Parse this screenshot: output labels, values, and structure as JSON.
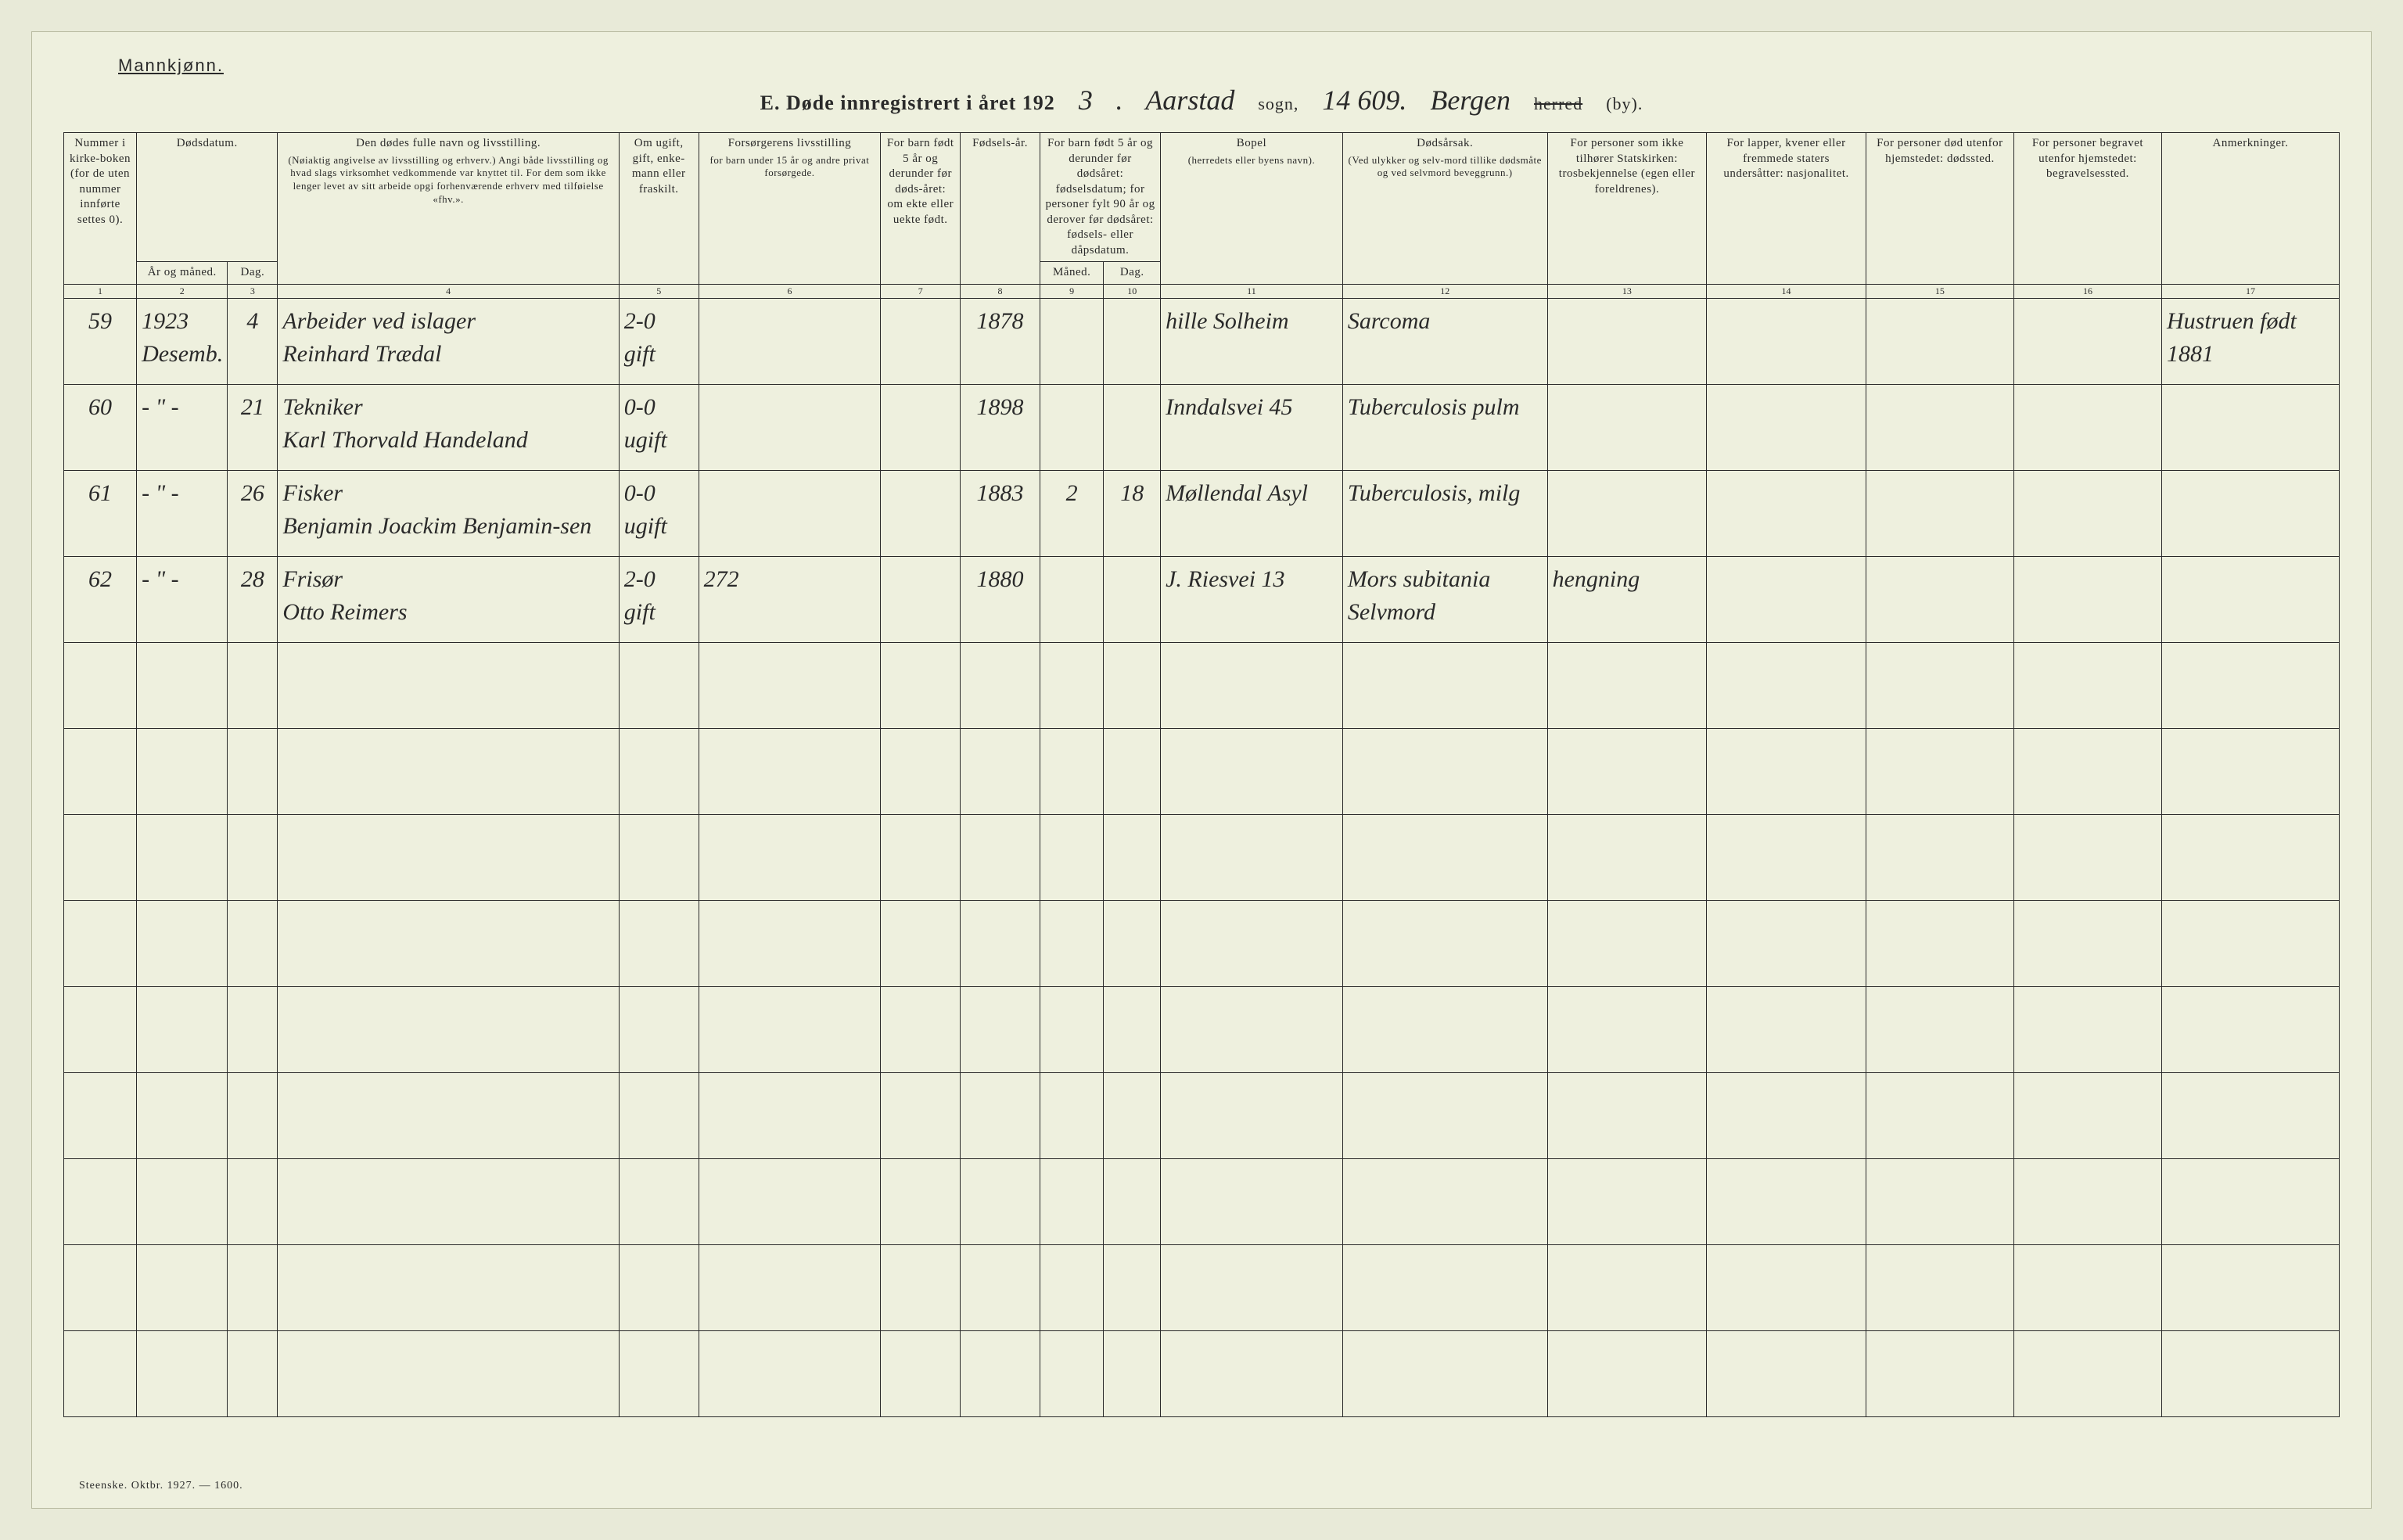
{
  "header": {
    "gender_label": "Mannkjønn.",
    "title_prefix": "E.   Døde innregistrert i året 192",
    "year_suffix": "3",
    "punct1": ".",
    "sogn_hand": "Aarstad",
    "sogn_label": "sogn,",
    "number_hand": "14 609.",
    "herred_hand": "Bergen",
    "herred_label_strike": "herred",
    "herred_label_by": "(by)."
  },
  "columns": {
    "c1": {
      "top": "Nummer i kirke-boken (for de uten nummer innførte settes 0).",
      "num": "1"
    },
    "c2": {
      "top": "Dødsdatum.",
      "num": "2"
    },
    "c2a": {
      "label": "År og måned."
    },
    "c3": {
      "label": "Dag.",
      "num": "3"
    },
    "c4": {
      "top": "Den dødes fulle navn og livsstilling.",
      "sub": "(Nøiaktig angivelse av livsstilling og erhverv.) Angi både livsstilling og hvad slags virksomhet vedkommende var knyttet til. For dem som ikke lenger levet av sitt arbeide opgi forhenværende erhverv med tilføielse «fhv.».",
      "num": "4"
    },
    "c5": {
      "top": "Om ugift, gift, enke-mann eller fraskilt.",
      "num": "5"
    },
    "c6": {
      "top": "Forsørgerens livsstilling",
      "sub": "for barn under 15 år og andre privat forsørgede.",
      "num": "6"
    },
    "c7": {
      "top": "For barn født 5 år og derunder før døds-året: om ekte eller uekte født.",
      "num": "7"
    },
    "c8": {
      "top": "Fødsels-år.",
      "num": "8"
    },
    "c9": {
      "top": "For barn født 5 år og derunder før dødsåret: fødselsdatum; for personer fylt 90 år og derover før dødsåret: fødsels- eller dåpsdatum.",
      "num": "9"
    },
    "c9a": {
      "label": "Måned."
    },
    "c10": {
      "label": "Dag.",
      "num": "10"
    },
    "c11": {
      "top": "Bopel",
      "sub": "(herredets eller byens navn).",
      "num": "11"
    },
    "c12": {
      "top": "Dødsårsak.",
      "sub": "(Ved ulykker og selv-mord tillike dødsmåte og ved selvmord beveggrunn.)",
      "num": "12"
    },
    "c13": {
      "top": "For personer som ikke tilhører Statskirken: trosbekjennelse (egen eller foreldrenes).",
      "num": "13"
    },
    "c14": {
      "top": "For lapper, kvener eller fremmede staters undersåtter: nasjonalitet.",
      "num": "14"
    },
    "c15": {
      "top": "For personer død utenfor hjemstedet: dødssted.",
      "num": "15"
    },
    "c16": {
      "top": "For personer begravet utenfor hjemstedet: begravelsessted.",
      "num": "16"
    },
    "c17": {
      "top": "Anmerkninger.",
      "num": "17"
    }
  },
  "rows": [
    {
      "c1": "59",
      "c2": "1923\nDesemb.",
      "c3": "4",
      "c4": "Arbeider ved islager\nReinhard Trædal",
      "c5": "2-0\ngift",
      "c6": "",
      "c7": "",
      "c8": "1878",
      "c9": "",
      "c10": "",
      "c11": "hille Solheim",
      "c12": "Sarcoma",
      "c13": "",
      "c14": "",
      "c15": "",
      "c16": "",
      "c17": "Hustruen født 1881"
    },
    {
      "c1": "60",
      "c2": "- \" -",
      "c3": "21",
      "c4": "Tekniker\nKarl Thorvald Handeland",
      "c5": "0-0\nugift",
      "c6": "",
      "c7": "",
      "c8": "1898",
      "c9": "",
      "c10": "",
      "c11": "Inndalsvei 45",
      "c12": "Tuberculosis pulm",
      "c13": "",
      "c14": "",
      "c15": "",
      "c16": "",
      "c17": ""
    },
    {
      "c1": "61",
      "c2": "- \" -",
      "c3": "26",
      "c4": "Fisker\nBenjamin Joackim Benjamin-sen",
      "c5": "0-0\nugift",
      "c6": "",
      "c7": "",
      "c8": "1883",
      "c9": "2",
      "c10": "18",
      "c11": "Møllendal Asyl",
      "c12": "Tuberculosis, milg",
      "c13": "",
      "c14": "",
      "c15": "",
      "c16": "",
      "c17": ""
    },
    {
      "c1": "62",
      "c2": "- \" -",
      "c3": "28",
      "c4": "Frisør\nOtto   Reimers",
      "c5": "2-0\ngift",
      "c6": "272",
      "c7": "",
      "c8": "1880",
      "c9": "",
      "c10": "",
      "c11": "J. Riesvei 13",
      "c12": "Mors subitania Selvmord",
      "c13": "hengning",
      "c14": "",
      "c15": "",
      "c16": "",
      "c17": ""
    }
  ],
  "empty_row_count": 9,
  "footer": "Steenske. Oktbr. 1927. — 1600.",
  "col_widths": [
    "3.2%",
    "4%",
    "2.2%",
    "15%",
    "3.5%",
    "8%",
    "3.5%",
    "3.5%",
    "2.8%",
    "2.5%",
    "8%",
    "9%",
    "7%",
    "7%",
    "6.5%",
    "6.5%",
    "7.8%"
  ]
}
